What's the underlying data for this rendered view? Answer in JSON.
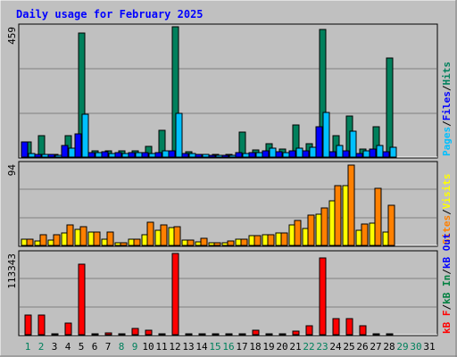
{
  "title": "Daily usage for February 2025",
  "colors": {
    "background": "#C0C0C0",
    "title": "#0000FF",
    "hits": "#00805C",
    "files": "#0000FF",
    "pages": "#00C0FF",
    "visits": "#FFFF00",
    "sites": "#FF8000",
    "kbin": "#008040",
    "kbout": "#0000FF",
    "kbf": "#FF0000",
    "weekend_label": "#00805C",
    "weekday_label": "#000000"
  },
  "chart_data": [
    {
      "type": "bar",
      "panel": "hits-files-pages",
      "scale_label": "459",
      "ylim": [
        0,
        459
      ],
      "legend": [
        {
          "key": "pages",
          "label": "Pages"
        },
        {
          "key": "sep1",
          "label": "/"
        },
        {
          "key": "files",
          "label": "Files"
        },
        {
          "key": "sep2",
          "label": "/"
        },
        {
          "key": "hits",
          "label": "Hits"
        }
      ],
      "categories": [
        "1",
        "2",
        "3",
        "4",
        "5",
        "6",
        "7",
        "8",
        "9",
        "10",
        "11",
        "12",
        "13",
        "14",
        "15",
        "16",
        "17",
        "18",
        "19",
        "20",
        "21",
        "22",
        "23",
        "24",
        "25",
        "26",
        "27",
        "28",
        "29",
        "30",
        "31"
      ],
      "series": [
        {
          "name": "Hits",
          "color": "#00805C",
          "values": [
            54,
            76,
            11,
            76,
            436,
            23,
            23,
            23,
            23,
            39,
            93,
            458,
            19,
            11,
            9,
            9,
            88,
            25,
            46,
            28,
            113,
            46,
            448,
            76,
            146,
            28,
            108,
            348,
            0,
            0,
            0
          ]
        },
        {
          "name": "Files",
          "color": "#0000FF",
          "values": [
            54,
            10,
            8,
            40,
            81,
            16,
            18,
            17,
            17,
            16,
            16,
            21,
            12,
            8,
            6,
            6,
            16,
            17,
            23,
            20,
            22,
            23,
            108,
            20,
            23,
            12,
            29,
            20,
            0,
            0,
            0
          ]
        },
        {
          "name": "Pages",
          "color": "#00C0FF",
          "values": [
            14,
            8,
            7,
            30,
            151,
            15,
            14,
            14,
            16,
            12,
            23,
            155,
            12,
            8,
            7,
            7,
            14,
            15,
            30,
            16,
            30,
            35,
            158,
            41,
            91,
            21,
            41,
            34,
            0,
            0,
            0
          ]
        }
      ]
    },
    {
      "type": "bar",
      "panel": "visits-sites",
      "scale_label": "94",
      "ylim": [
        0,
        94
      ],
      "legend": [
        {
          "key": "sites",
          "label": "Sites"
        },
        {
          "key": "sep1",
          "label": "/"
        },
        {
          "key": "visits",
          "label": "Visits"
        }
      ],
      "categories": [
        "1",
        "2",
        "3",
        "4",
        "5",
        "6",
        "7",
        "8",
        "9",
        "10",
        "11",
        "12",
        "13",
        "14",
        "15",
        "16",
        "17",
        "18",
        "19",
        "20",
        "21",
        "22",
        "23",
        "24",
        "25",
        "26",
        "27",
        "28",
        "29",
        "30",
        "31"
      ],
      "series": [
        {
          "name": "Visits",
          "color": "#FFFF00",
          "values": [
            7,
            5,
            6,
            14,
            19,
            15,
            7,
            3,
            7,
            12,
            18,
            21,
            6,
            4,
            3,
            3,
            7,
            11,
            12,
            14,
            24,
            20,
            36,
            52,
            69,
            18,
            26,
            15,
            0,
            0,
            0
          ]
        },
        {
          "name": "Sites",
          "color": "#FF8000",
          "values": [
            7,
            12,
            12,
            24,
            22,
            15,
            16,
            3,
            7,
            27,
            24,
            22,
            6,
            8,
            3,
            5,
            7,
            11,
            12,
            14,
            29,
            35,
            43,
            69,
            93,
            25,
            66,
            46,
            0,
            0,
            0
          ]
        }
      ]
    },
    {
      "type": "bar",
      "panel": "kbytes",
      "scale_label": "113343",
      "ylim": [
        0,
        113343
      ],
      "legend": [
        {
          "key": "kbf",
          "label": "kB F"
        },
        {
          "key": "sep1",
          "label": "/"
        },
        {
          "key": "kbin",
          "label": "kB In"
        },
        {
          "key": "sep2",
          "label": "/"
        },
        {
          "key": "kbout",
          "label": "kB Out"
        }
      ],
      "categories": [
        "1",
        "2",
        "3",
        "4",
        "5",
        "6",
        "7",
        "8",
        "9",
        "10",
        "11",
        "12",
        "13",
        "14",
        "15",
        "16",
        "17",
        "18",
        "19",
        "20",
        "21",
        "22",
        "23",
        "24",
        "25",
        "26",
        "27",
        "28",
        "29",
        "30",
        "31"
      ],
      "series": [
        {
          "name": "kB F",
          "color": "#FF0000",
          "values": [
            28000,
            28000,
            1500,
            16000,
            98000,
            1500,
            2200,
            1500,
            9000,
            6500,
            1500,
            113000,
            1500,
            1500,
            1500,
            1500,
            1500,
            6500,
            1500,
            1500,
            4500,
            12000,
            107000,
            23000,
            23000,
            12000,
            1500,
            1500,
            0,
            0,
            0
          ]
        }
      ]
    }
  ],
  "day_labels": [
    {
      "label": "1",
      "weekend": true
    },
    {
      "label": "2",
      "weekend": true
    },
    {
      "label": "3",
      "weekend": false
    },
    {
      "label": "4",
      "weekend": false
    },
    {
      "label": "5",
      "weekend": false
    },
    {
      "label": "6",
      "weekend": false
    },
    {
      "label": "7",
      "weekend": false
    },
    {
      "label": "8",
      "weekend": true
    },
    {
      "label": "9",
      "weekend": true
    },
    {
      "label": "10",
      "weekend": false
    },
    {
      "label": "11",
      "weekend": false
    },
    {
      "label": "12",
      "weekend": false
    },
    {
      "label": "13",
      "weekend": false
    },
    {
      "label": "14",
      "weekend": false
    },
    {
      "label": "15",
      "weekend": true
    },
    {
      "label": "16",
      "weekend": true
    },
    {
      "label": "17",
      "weekend": false
    },
    {
      "label": "18",
      "weekend": false
    },
    {
      "label": "19",
      "weekend": false
    },
    {
      "label": "20",
      "weekend": false
    },
    {
      "label": "21",
      "weekend": false
    },
    {
      "label": "22",
      "weekend": true
    },
    {
      "label": "23",
      "weekend": true
    },
    {
      "label": "24",
      "weekend": false
    },
    {
      "label": "25",
      "weekend": false
    },
    {
      "label": "26",
      "weekend": false
    },
    {
      "label": "27",
      "weekend": false
    },
    {
      "label": "28",
      "weekend": false
    },
    {
      "label": "29",
      "weekend": true
    },
    {
      "label": "30",
      "weekend": true
    },
    {
      "label": "31",
      "weekend": false
    }
  ]
}
